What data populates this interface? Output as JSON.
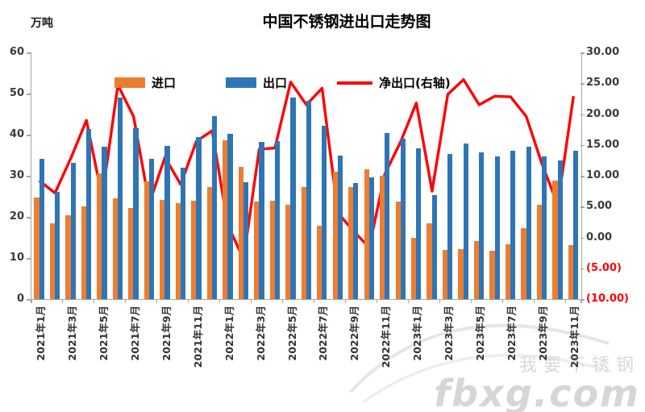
{
  "title": "中国不锈钢进出口走势图",
  "unit_label": "万吨",
  "legend": {
    "import_label": "进口",
    "export_label": "出口",
    "net_label": "净出口(右轴)"
  },
  "watermark": {
    "line1": "我要不锈钢",
    "line2": "fbxg.com"
  },
  "colors": {
    "import": "#ED7D31",
    "export": "#2E75B6",
    "net": "#FF0000",
    "axis": "#A6A6A6",
    "tick_text": "#3A3A3A",
    "negative_tick": "#FF0000",
    "watermark": "#D9D9D9"
  },
  "chart_data": {
    "type": "bar",
    "subtype": "bar-line-combo",
    "title": "中国不锈钢进出口走势图",
    "xlabel": "",
    "ylabel_left": "万吨",
    "grid": false,
    "legend_position": "top",
    "categories": [
      "2021年1月",
      "2021年2月",
      "2021年3月",
      "2021年4月",
      "2021年5月",
      "2021年6月",
      "2021年7月",
      "2021年8月",
      "2021年9月",
      "2021年10月",
      "2021年11月",
      "2021年12月",
      "2022年1月",
      "2022年2月",
      "2022年3月",
      "2022年4月",
      "2022年5月",
      "2022年6月",
      "2022年7月",
      "2022年8月",
      "2022年9月",
      "2022年10月",
      "2022年11月",
      "2022年12月",
      "2023年1月",
      "2023年2月",
      "2023年3月",
      "2023年4月",
      "2023年5月",
      "2023年6月",
      "2023年7月",
      "2023年8月",
      "2023年9月",
      "2023年10月",
      "2023年11月"
    ],
    "x_tick_labels_shown": [
      "2021年1月",
      "2021年3月",
      "2021年5月",
      "2021年7月",
      "2021年9月",
      "2021年11月",
      "2022年1月",
      "2022年3月",
      "2022年5月",
      "2022年7月",
      "2022年9月",
      "2022年11月",
      "2023年1月",
      "2023年3月",
      "2023年5月",
      "2023年7月",
      "2023年9月",
      "2023年11月"
    ],
    "series": [
      {
        "name": "进口",
        "kind": "bar",
        "axis": "left",
        "color": "#ED7D31",
        "values": [
          24.8,
          18.5,
          20.3,
          22.5,
          30.6,
          24.5,
          22.1,
          28.7,
          24.2,
          23.3,
          24.0,
          27.3,
          38.6,
          32.1,
          23.8,
          24.0,
          23.0,
          27.3,
          17.9,
          31.0,
          27.2,
          31.5,
          30.1,
          23.7,
          14.9,
          18.5,
          11.9,
          12.1,
          14.2,
          11.8,
          13.4,
          17.3,
          23.0,
          28.8,
          13.2
        ]
      },
      {
        "name": "出口",
        "kind": "bar",
        "axis": "left",
        "color": "#2E75B6",
        "values": [
          34.1,
          26.0,
          33.1,
          41.3,
          37.1,
          49.1,
          41.6,
          34.2,
          37.2,
          31.9,
          39.5,
          44.5,
          40.2,
          28.5,
          38.3,
          38.5,
          49.0,
          48.3,
          42.1,
          35.0,
          28.2,
          29.7,
          40.3,
          39.0,
          36.6,
          25.3,
          35.2,
          37.8,
          35.6,
          34.8,
          36.1,
          37.0,
          34.8,
          33.8,
          36.1
        ]
      },
      {
        "name": "净出口(右轴)",
        "kind": "line",
        "axis": "right",
        "color": "#FF0000",
        "values": [
          9.2,
          7.2,
          12.8,
          19.0,
          6.5,
          24.7,
          19.6,
          5.5,
          13.0,
          8.6,
          15.6,
          17.3,
          2.0,
          -3.5,
          14.3,
          14.5,
          25.2,
          21.5,
          24.2,
          4.0,
          1.0,
          -1.6,
          10.3,
          15.5,
          21.8,
          7.5,
          23.2,
          25.6,
          21.5,
          22.9,
          22.8,
          19.6,
          11.9,
          5.3,
          22.9
        ]
      }
    ],
    "left_axis": {
      "min": 0,
      "max": 60,
      "step": 10,
      "tick_labels": [
        "0",
        "10",
        "20",
        "30",
        "40",
        "50",
        "60"
      ]
    },
    "right_axis": {
      "min": -10,
      "max": 30,
      "step": 5,
      "tick_labels": [
        "(10.00)",
        "(5.00)",
        "0.00",
        "5.00",
        "10.00",
        "15.00",
        "20.00",
        "25.00",
        "30.00"
      ]
    }
  }
}
